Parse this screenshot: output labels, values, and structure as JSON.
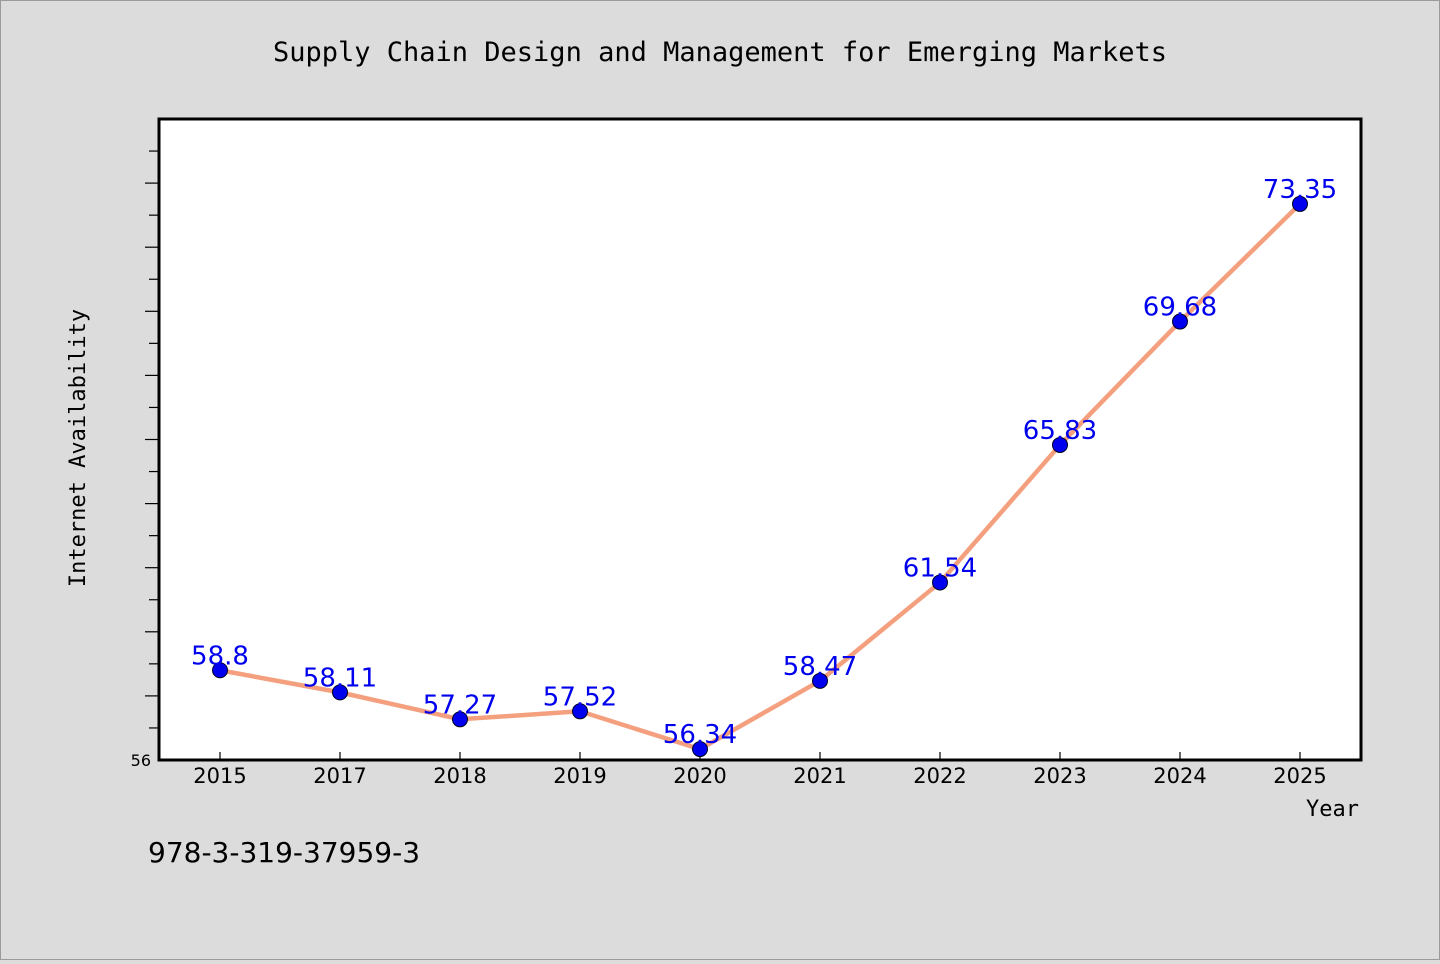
{
  "chart_data": {
    "type": "line",
    "title": "Supply Chain Design and Management for Emerging Markets",
    "xlabel": "Year",
    "ylabel": "Internet Availability",
    "categories": [
      "2015",
      "2017",
      "2018",
      "2019",
      "2020",
      "2021",
      "2022",
      "2023",
      "2024",
      "2025"
    ],
    "series": [
      {
        "values": [
          58.8,
          58.11,
          57.27,
          57.52,
          56.34,
          58.47,
          61.54,
          65.83,
          69.68,
          73.35
        ],
        "labels": [
          "58.8",
          "58.11",
          "57.27",
          "57.52",
          "56.34",
          "58.47",
          "61.54",
          "65.83",
          "69.68",
          "73.35"
        ],
        "line_color": "#f4a07e",
        "marker_color": "#0000ee",
        "label_color": "#0000ee"
      }
    ],
    "ylim": [
      56,
      76
    ],
    "y_min_label": "56",
    "grid": false,
    "legend": "none"
  },
  "footer": {
    "isbn": "978-3-319-37959-3"
  },
  "colors": {
    "background": "#dcdcdc",
    "plot_background": "#ffffff",
    "axis": "#000000"
  }
}
